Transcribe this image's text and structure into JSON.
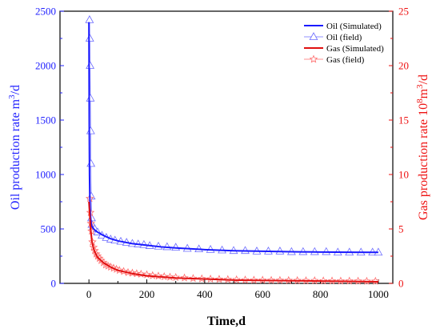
{
  "chart_data": {
    "type": "line",
    "xlabel": "Time,d",
    "ylabel_left": {
      "base": "Oil production rate m",
      "sup": "3",
      "tail": "/d"
    },
    "ylabel_right": {
      "base": "Gas production rate 10",
      "sup1": "8",
      "mid": "m",
      "sup2": "3",
      "tail": "/d"
    },
    "xlim": [
      -100,
      1050
    ],
    "ylim_left": [
      0,
      2500
    ],
    "ylim_right": [
      0,
      25
    ],
    "x_ticks": [
      0,
      200,
      400,
      600,
      800,
      1000
    ],
    "y_ticks_left": [
      0,
      500,
      1000,
      1500,
      2000,
      2500
    ],
    "y_ticks_right": [
      0,
      5,
      10,
      15,
      20,
      25
    ],
    "colors": {
      "oil": "#1a1aff",
      "oil_field": "#6b6bff",
      "gas": "#e01010",
      "gas_field": "#ff6b6b",
      "axis_left": "#2222ff",
      "axis_right": "#ee1111"
    },
    "legend_position": "top-right",
    "series": [
      {
        "name": "Oil (Simulated)",
        "axis": "left",
        "style": "line",
        "x": [
          0,
          1,
          2,
          3,
          4,
          5,
          6,
          7,
          8,
          9,
          10,
          15,
          20,
          30,
          50,
          75,
          100,
          150,
          200,
          250,
          300,
          400,
          500,
          600,
          700,
          800,
          900,
          1000
        ],
        "y": [
          2400,
          1500,
          1000,
          800,
          700,
          640,
          600,
          570,
          550,
          535,
          525,
          505,
          490,
          470,
          440,
          410,
          390,
          365,
          350,
          335,
          325,
          310,
          300,
          295,
          290,
          288,
          286,
          285
        ]
      },
      {
        "name": "Oil (field)",
        "axis": "left",
        "style": "triangle",
        "x": [
          2,
          3,
          4,
          5,
          6,
          7,
          8,
          9,
          10,
          15,
          20,
          30,
          45,
          60,
          75,
          90,
          110,
          130,
          150,
          170,
          190,
          210,
          240,
          270,
          300,
          340,
          380,
          420,
          460,
          500,
          540,
          580,
          620,
          660,
          700,
          740,
          780,
          820,
          860,
          900,
          940,
          980,
          1000
        ],
        "y": [
          2420,
          2250,
          2000,
          1700,
          1400,
          1100,
          800,
          600,
          540,
          520,
          500,
          470,
          440,
          420,
          405,
          395,
          385,
          375,
          365,
          360,
          355,
          345,
          340,
          335,
          330,
          320,
          315,
          310,
          305,
          300,
          300,
          295,
          295,
          295,
          290,
          290,
          290,
          290,
          285,
          285,
          285,
          285,
          285
        ]
      },
      {
        "name": "Gas (Simulated)",
        "axis": "right",
        "style": "line",
        "x": [
          0,
          2,
          4,
          6,
          8,
          10,
          15,
          20,
          30,
          50,
          75,
          100,
          150,
          200,
          250,
          300,
          400,
          500,
          600,
          700,
          800,
          900,
          1000
        ],
        "y": [
          7.5,
          6.6,
          5.8,
          5.0,
          4.4,
          3.9,
          3.3,
          2.9,
          2.4,
          1.9,
          1.5,
          1.2,
          0.9,
          0.7,
          0.6,
          0.5,
          0.4,
          0.3,
          0.27,
          0.24,
          0.21,
          0.18,
          0.15
        ]
      },
      {
        "name": "Gas (field)",
        "axis": "right",
        "style": "star",
        "x": [
          3,
          5,
          7,
          9,
          12,
          16,
          20,
          25,
          30,
          36,
          42,
          50,
          58,
          66,
          75,
          85,
          95,
          105,
          120,
          135,
          150,
          165,
          180,
          200,
          220,
          240,
          260,
          280,
          300,
          330,
          360,
          390,
          420,
          450,
          480,
          510,
          540,
          570,
          600,
          630,
          660,
          690,
          720,
          750,
          780,
          810,
          840,
          870,
          900,
          930,
          960,
          990
        ],
        "y": [
          7.8,
          6.5,
          5.5,
          4.8,
          3.8,
          3.3,
          3.0,
          2.7,
          2.5,
          2.3,
          2.1,
          1.9,
          1.7,
          1.6,
          1.5,
          1.4,
          1.3,
          1.2,
          1.1,
          1.0,
          0.95,
          0.9,
          0.85,
          0.8,
          0.72,
          0.68,
          0.62,
          0.58,
          0.55,
          0.5,
          0.46,
          0.43,
          0.4,
          0.38,
          0.36,
          0.34,
          0.32,
          0.3,
          0.3,
          0.28,
          0.28,
          0.27,
          0.26,
          0.25,
          0.25,
          0.24,
          0.23,
          0.22,
          0.22,
          0.21,
          0.2,
          0.2
        ]
      }
    ]
  }
}
